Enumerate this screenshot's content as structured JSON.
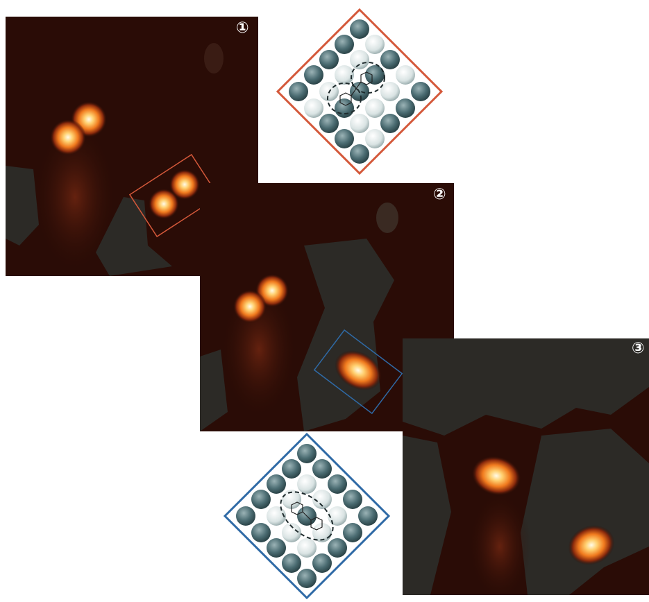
{
  "panels": [
    {
      "id": "1",
      "label": "①"
    },
    {
      "id": "2",
      "label": "②"
    },
    {
      "id": "3",
      "label": "③"
    }
  ],
  "colors": {
    "background": "#2a0c06",
    "dim_region": "#2c2a26",
    "orange_frame": "#d4583a",
    "blue_frame": "#2f6aa6",
    "atom_dark": "#4b6c72",
    "atom_light": "#d9e3e3"
  }
}
